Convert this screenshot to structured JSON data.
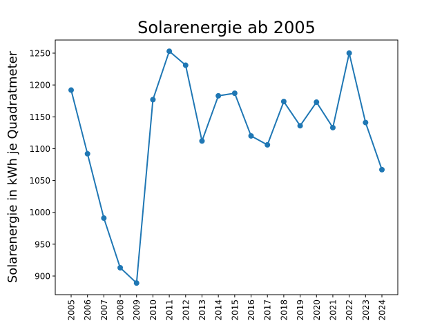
{
  "chart_data": {
    "type": "line",
    "title": "Solarenergie ab 2005",
    "xlabel": "",
    "ylabel": "Solarenergie in kWh je Quadratmeter",
    "categories": [
      "2005",
      "2006",
      "2007",
      "2008",
      "2009",
      "2010",
      "2011",
      "2012",
      "2013",
      "2014",
      "2015",
      "2016",
      "2017",
      "2018",
      "2019",
      "2020",
      "2021",
      "2022",
      "2023",
      "2024"
    ],
    "values": [
      1192,
      1092,
      991,
      913,
      889,
      1177,
      1253,
      1231,
      1112,
      1183,
      1187,
      1120,
      1106,
      1174,
      1136,
      1173,
      1133,
      1250,
      1141,
      1067
    ],
    "yticks": [
      900,
      950,
      1000,
      1050,
      1100,
      1150,
      1200,
      1250
    ],
    "marker": "circle",
    "grid": false,
    "color": "#1f77b4"
  }
}
